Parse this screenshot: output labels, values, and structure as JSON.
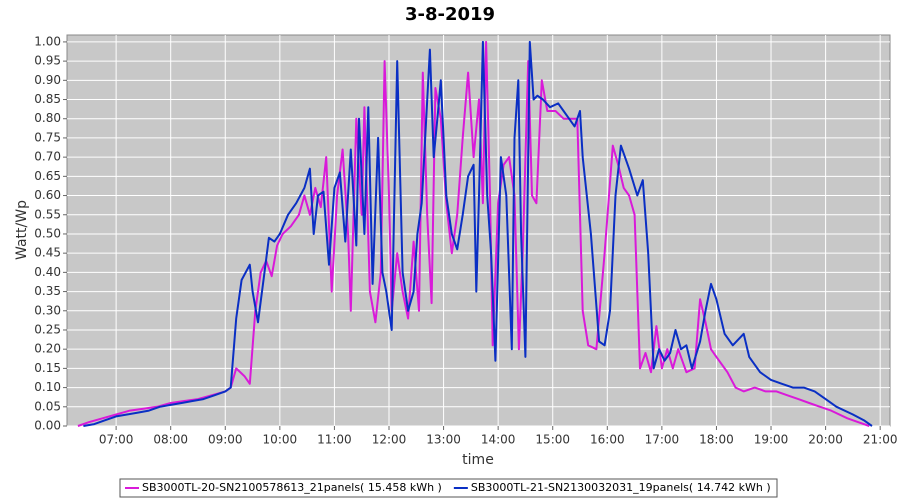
{
  "chart_data": {
    "type": "line",
    "title": "3-8-2019",
    "x_label": "time",
    "y_label": "Watt/Wp",
    "xlim": [
      6.1,
      21.18
    ],
    "ylim": [
      0,
      1.018
    ],
    "xticks": [
      {
        "value": 7,
        "label": "07:00"
      },
      {
        "value": 8,
        "label": "08:00"
      },
      {
        "value": 9,
        "label": "09:00"
      },
      {
        "value": 10,
        "label": "10:00"
      },
      {
        "value": 11,
        "label": "11:00"
      },
      {
        "value": 12,
        "label": "12:00"
      },
      {
        "value": 13,
        "label": "13:00"
      },
      {
        "value": 14,
        "label": "14:00"
      },
      {
        "value": 15,
        "label": "15:00"
      },
      {
        "value": 16,
        "label": "16:00"
      },
      {
        "value": 17,
        "label": "17:00"
      },
      {
        "value": 18,
        "label": "18:00"
      },
      {
        "value": 19,
        "label": "19:00"
      },
      {
        "value": 20,
        "label": "20:00"
      },
      {
        "value": 21,
        "label": "21:00"
      }
    ],
    "yticks": [
      {
        "value": 0,
        "label": "0.00"
      },
      {
        "value": 0.05,
        "label": "0.05"
      },
      {
        "value": 0.1,
        "label": "0.10"
      },
      {
        "value": 0.15,
        "label": "0.15"
      },
      {
        "value": 0.2,
        "label": "0.20"
      },
      {
        "value": 0.25,
        "label": "0.25"
      },
      {
        "value": 0.3,
        "label": "0.30"
      },
      {
        "value": 0.35,
        "label": "0.35"
      },
      {
        "value": 0.4,
        "label": "0.40"
      },
      {
        "value": 0.45,
        "label": "0.45"
      },
      {
        "value": 0.5,
        "label": "0.50"
      },
      {
        "value": 0.55,
        "label": "0.55"
      },
      {
        "value": 0.6,
        "label": "0.60"
      },
      {
        "value": 0.65,
        "label": "0.65"
      },
      {
        "value": 0.7,
        "label": "0.70"
      },
      {
        "value": 0.75,
        "label": "0.75"
      },
      {
        "value": 0.8,
        "label": "0.80"
      },
      {
        "value": 0.85,
        "label": "0.85"
      },
      {
        "value": 0.9,
        "label": "0.90"
      },
      {
        "value": 0.95,
        "label": "0.95"
      },
      {
        "value": 1,
        "label": "1.00"
      }
    ],
    "grid": true,
    "series": [
      {
        "name": "SB3000TL-20-SN2100578613_21panels( 15.458 kWh )",
        "color": "#d91ad9",
        "x": [
          6.3,
          6.5,
          6.75,
          7.0,
          7.25,
          7.5,
          7.75,
          8.0,
          8.25,
          8.5,
          8.75,
          9.0,
          9.1,
          9.2,
          9.35,
          9.45,
          9.55,
          9.65,
          9.75,
          9.85,
          9.95,
          10.05,
          10.2,
          10.35,
          10.45,
          10.55,
          10.65,
          10.75,
          10.85,
          10.95,
          11.05,
          11.15,
          11.25,
          11.3,
          11.4,
          11.5,
          11.55,
          11.65,
          11.75,
          11.85,
          11.92,
          12.0,
          12.05,
          12.15,
          12.25,
          12.35,
          12.45,
          12.55,
          12.62,
          12.7,
          12.78,
          12.85,
          12.95,
          13.05,
          13.15,
          13.25,
          13.35,
          13.45,
          13.55,
          13.65,
          13.72,
          13.78,
          13.85,
          13.9,
          14.0,
          14.1,
          14.2,
          14.3,
          14.38,
          14.45,
          14.55,
          14.62,
          14.7,
          14.8,
          14.9,
          15.05,
          15.2,
          15.35,
          15.45,
          15.5,
          15.55,
          15.65,
          15.8,
          15.95,
          16.1,
          16.2,
          16.3,
          16.4,
          16.5,
          16.6,
          16.7,
          16.8,
          16.9,
          17.0,
          17.1,
          17.2,
          17.3,
          17.45,
          17.6,
          17.7,
          17.8,
          17.9,
          18.0,
          18.2,
          18.35,
          18.5,
          18.7,
          18.9,
          19.1,
          19.3,
          19.5,
          19.7,
          19.9,
          20.1,
          20.4,
          20.6,
          20.8
        ],
        "values": [
          0,
          0.01,
          0.02,
          0.03,
          0.04,
          0.045,
          0.05,
          0.06,
          0.065,
          0.07,
          0.08,
          0.09,
          0.1,
          0.15,
          0.13,
          0.11,
          0.3,
          0.4,
          0.43,
          0.39,
          0.47,
          0.5,
          0.52,
          0.55,
          0.6,
          0.55,
          0.62,
          0.57,
          0.7,
          0.35,
          0.6,
          0.72,
          0.5,
          0.3,
          0.8,
          0.55,
          0.83,
          0.35,
          0.27,
          0.4,
          0.95,
          0.6,
          0.3,
          0.45,
          0.35,
          0.28,
          0.48,
          0.3,
          0.92,
          0.55,
          0.32,
          0.88,
          0.8,
          0.58,
          0.45,
          0.55,
          0.75,
          0.92,
          0.7,
          0.85,
          0.58,
          1.0,
          0.6,
          0.21,
          0.58,
          0.68,
          0.7,
          0.6,
          0.2,
          0.45,
          0.95,
          0.6,
          0.58,
          0.9,
          0.82,
          0.82,
          0.8,
          0.8,
          0.8,
          0.55,
          0.3,
          0.21,
          0.2,
          0.45,
          0.73,
          0.68,
          0.62,
          0.6,
          0.55,
          0.15,
          0.19,
          0.14,
          0.26,
          0.15,
          0.2,
          0.15,
          0.2,
          0.14,
          0.15,
          0.33,
          0.27,
          0.2,
          0.18,
          0.14,
          0.1,
          0.09,
          0.1,
          0.09,
          0.09,
          0.08,
          0.07,
          0.06,
          0.05,
          0.04,
          0.02,
          0.01,
          0
        ]
      },
      {
        "name": "SB3000TL-21-SN2130032031_19panels( 14.742 kWh )",
        "color": "#0a2fc4",
        "x": [
          6.4,
          6.6,
          6.8,
          7.0,
          7.2,
          7.4,
          7.6,
          7.8,
          8.0,
          8.2,
          8.4,
          8.6,
          8.8,
          9.0,
          9.1,
          9.2,
          9.3,
          9.45,
          9.5,
          9.6,
          9.7,
          9.8,
          9.9,
          10.0,
          10.15,
          10.3,
          10.45,
          10.55,
          10.62,
          10.7,
          10.8,
          10.9,
          11.0,
          11.1,
          11.2,
          11.3,
          11.4,
          11.45,
          11.55,
          11.62,
          11.7,
          11.8,
          11.88,
          11.95,
          12.05,
          12.15,
          12.25,
          12.35,
          12.45,
          12.52,
          12.6,
          12.75,
          12.82,
          12.9,
          12.95,
          13.05,
          13.15,
          13.25,
          13.35,
          13.45,
          13.55,
          13.6,
          13.65,
          13.72,
          13.8,
          13.87,
          13.95,
          14.05,
          14.15,
          14.25,
          14.3,
          14.37,
          14.42,
          14.5,
          14.58,
          14.65,
          14.72,
          14.82,
          14.95,
          15.1,
          15.2,
          15.3,
          15.4,
          15.5,
          15.55,
          15.7,
          15.85,
          15.95,
          16.05,
          16.15,
          16.25,
          16.4,
          16.55,
          16.65,
          16.75,
          16.85,
          16.95,
          17.05,
          17.15,
          17.25,
          17.35,
          17.45,
          17.55,
          17.7,
          17.8,
          17.9,
          18.0,
          18.15,
          18.3,
          18.5,
          18.6,
          18.8,
          19.0,
          19.2,
          19.4,
          19.6,
          19.8,
          20.0,
          20.2,
          20.5,
          20.7,
          20.85
        ],
        "values": [
          0,
          0.005,
          0.015,
          0.025,
          0.03,
          0.035,
          0.04,
          0.05,
          0.055,
          0.06,
          0.065,
          0.07,
          0.08,
          0.09,
          0.1,
          0.28,
          0.38,
          0.42,
          0.35,
          0.27,
          0.38,
          0.49,
          0.48,
          0.5,
          0.55,
          0.58,
          0.62,
          0.67,
          0.5,
          0.6,
          0.61,
          0.42,
          0.62,
          0.66,
          0.48,
          0.72,
          0.47,
          0.8,
          0.5,
          0.83,
          0.37,
          0.75,
          0.4,
          0.35,
          0.25,
          0.95,
          0.4,
          0.3,
          0.35,
          0.5,
          0.58,
          0.98,
          0.7,
          0.82,
          0.9,
          0.6,
          0.5,
          0.46,
          0.55,
          0.65,
          0.68,
          0.35,
          0.6,
          1.0,
          0.6,
          0.45,
          0.17,
          0.7,
          0.6,
          0.2,
          0.75,
          0.9,
          0.5,
          0.18,
          1.0,
          0.85,
          0.86,
          0.85,
          0.83,
          0.84,
          0.82,
          0.8,
          0.78,
          0.82,
          0.7,
          0.5,
          0.22,
          0.21,
          0.3,
          0.6,
          0.73,
          0.67,
          0.6,
          0.64,
          0.45,
          0.15,
          0.2,
          0.17,
          0.19,
          0.25,
          0.2,
          0.21,
          0.15,
          0.22,
          0.3,
          0.37,
          0.33,
          0.24,
          0.21,
          0.24,
          0.18,
          0.14,
          0.12,
          0.11,
          0.1,
          0.1,
          0.09,
          0.07,
          0.05,
          0.03,
          0.015,
          0
        ]
      }
    ]
  }
}
